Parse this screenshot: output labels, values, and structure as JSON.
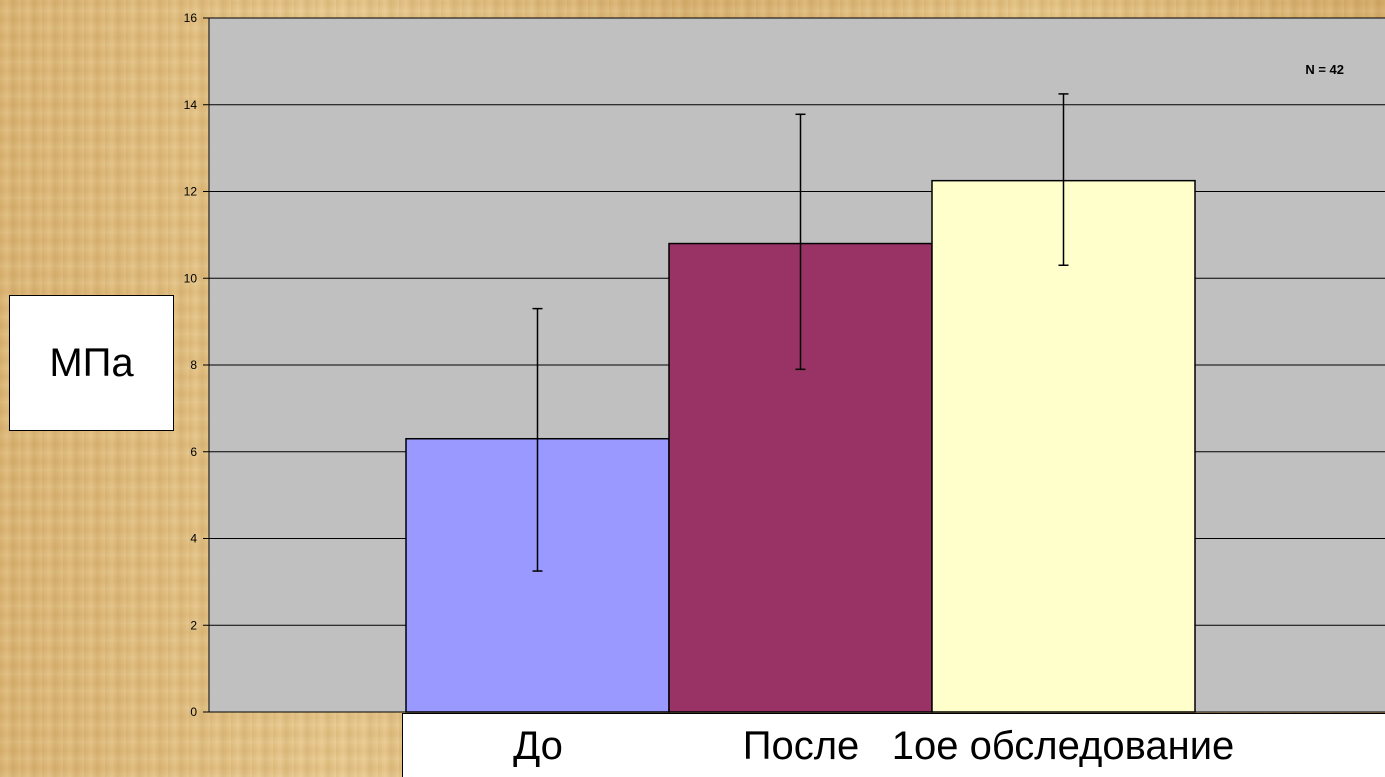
{
  "chart_data": {
    "type": "bar",
    "categories": [
      "До",
      "После",
      "1ое обследование"
    ],
    "values": [
      6.3,
      10.8,
      12.25
    ],
    "error_bars": [
      {
        "low": 3.25,
        "high": 9.3
      },
      {
        "low": 7.9,
        "high": 13.78
      },
      {
        "low": 10.3,
        "high": 14.25
      }
    ],
    "ylabel": "МПа",
    "ylim": [
      0,
      16
    ],
    "yticks": [
      "0",
      "2",
      "4",
      "6",
      "8",
      "10",
      "12",
      "14",
      "16"
    ],
    "annotation": "N = 42",
    "grid": true,
    "colors": {
      "bars": [
        "#9999ff",
        "#993366",
        "#ffffcc"
      ],
      "plot_area": "#c0c0c0",
      "grid": "#000000"
    }
  }
}
